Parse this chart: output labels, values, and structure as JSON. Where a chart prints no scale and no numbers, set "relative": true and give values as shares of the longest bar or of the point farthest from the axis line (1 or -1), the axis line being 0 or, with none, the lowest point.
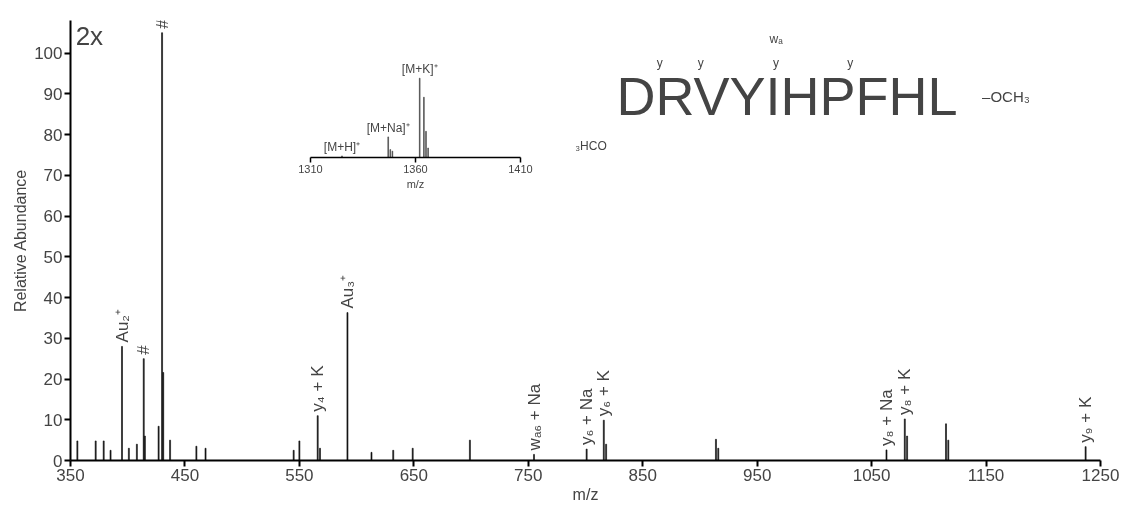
{
  "chart_data": [
    {
      "type": "bar",
      "xlabel": "m/z",
      "ylabel": "Relative Abundance",
      "x": [
        356,
        372,
        379,
        385,
        395,
        401,
        408,
        414,
        415,
        427,
        430,
        431,
        437,
        460,
        468,
        545,
        550,
        566,
        568,
        592,
        613,
        632,
        649,
        699,
        755,
        801,
        816,
        818,
        914,
        916,
        1063,
        1079,
        1081,
        1115,
        1117,
        1237
      ],
      "series": [
        {
          "color": "#111111",
          "values": [
            4.8,
            4.8,
            4.8,
            2.5,
            28,
            3,
            4,
            25,
            6,
            8.4,
            105,
            21.6,
            5,
            3.5,
            3,
            2.5,
            4.8,
            11,
            3,
            36.3,
            2,
            2.5,
            3,
            5,
            1.5,
            2.8,
            9.9,
            4,
            5.2,
            3,
            2.6,
            10.2,
            6,
            9,
            5,
            3.4
          ]
        }
      ],
      "xlim": [
        350,
        1250
      ],
      "ylim": [
        0,
        108
      ],
      "xticks": [
        350,
        450,
        550,
        650,
        750,
        850,
        950,
        1050,
        1150,
        1250
      ],
      "yticks": [
        0,
        10,
        20,
        30,
        40,
        50,
        60,
        70,
        80,
        90,
        100
      ],
      "annotations": [
        {
          "text": "Au₂⁺",
          "x": 395,
          "y": 28
        },
        {
          "text": "#",
          "x": 414,
          "y": 25
        },
        {
          "text": "#",
          "x": 430,
          "y": 105
        },
        {
          "text": "y₄ + K",
          "x": 566,
          "y": 11
        },
        {
          "text": "Au₃⁺",
          "x": 592,
          "y": 36.3
        },
        {
          "text": "wₐ₆ + Na",
          "x": 755,
          "y": 1.5
        },
        {
          "text": "y₆ + Na",
          "x": 801,
          "y": 2.8
        },
        {
          "text": "y₆ + K",
          "x": 816,
          "y": 9.9
        },
        {
          "text": "y₈ + Na",
          "x": 1063,
          "y": 2.6
        },
        {
          "text": "y₈ + K",
          "x": 1079,
          "y": 10.2
        },
        {
          "text": "y₉ + K",
          "x": 1237,
          "y": 3.4
        },
        "2x",
        "₃HCO",
        "DRVYIHPFHL",
        "–OCH₃",
        "y",
        "y",
        "y",
        "y",
        "wₐ"
      ]
    },
    {
      "type": "bar",
      "relative": true,
      "xlabel": "m/z",
      "x": [
        1325,
        1347,
        1348,
        1349,
        1362,
        1364,
        1365,
        1366
      ],
      "series": [
        {
          "color": "#444444",
          "values": [
            0.02,
            0.26,
            0.1,
            0.08,
            1,
            0.76,
            0.33,
            0.12
          ]
        }
      ],
      "xlim": [
        1310,
        1410
      ],
      "xticks": [
        1310,
        1360,
        1410
      ],
      "annotations": [
        {
          "text": "[M+H]⁺",
          "x": 1325,
          "y": 0.02
        },
        {
          "text": "[M+Na]⁺",
          "x": 1347,
          "y": 0.26
        },
        {
          "text": "[M+K]⁺",
          "x": 1362,
          "y": 1
        }
      ]
    }
  ]
}
